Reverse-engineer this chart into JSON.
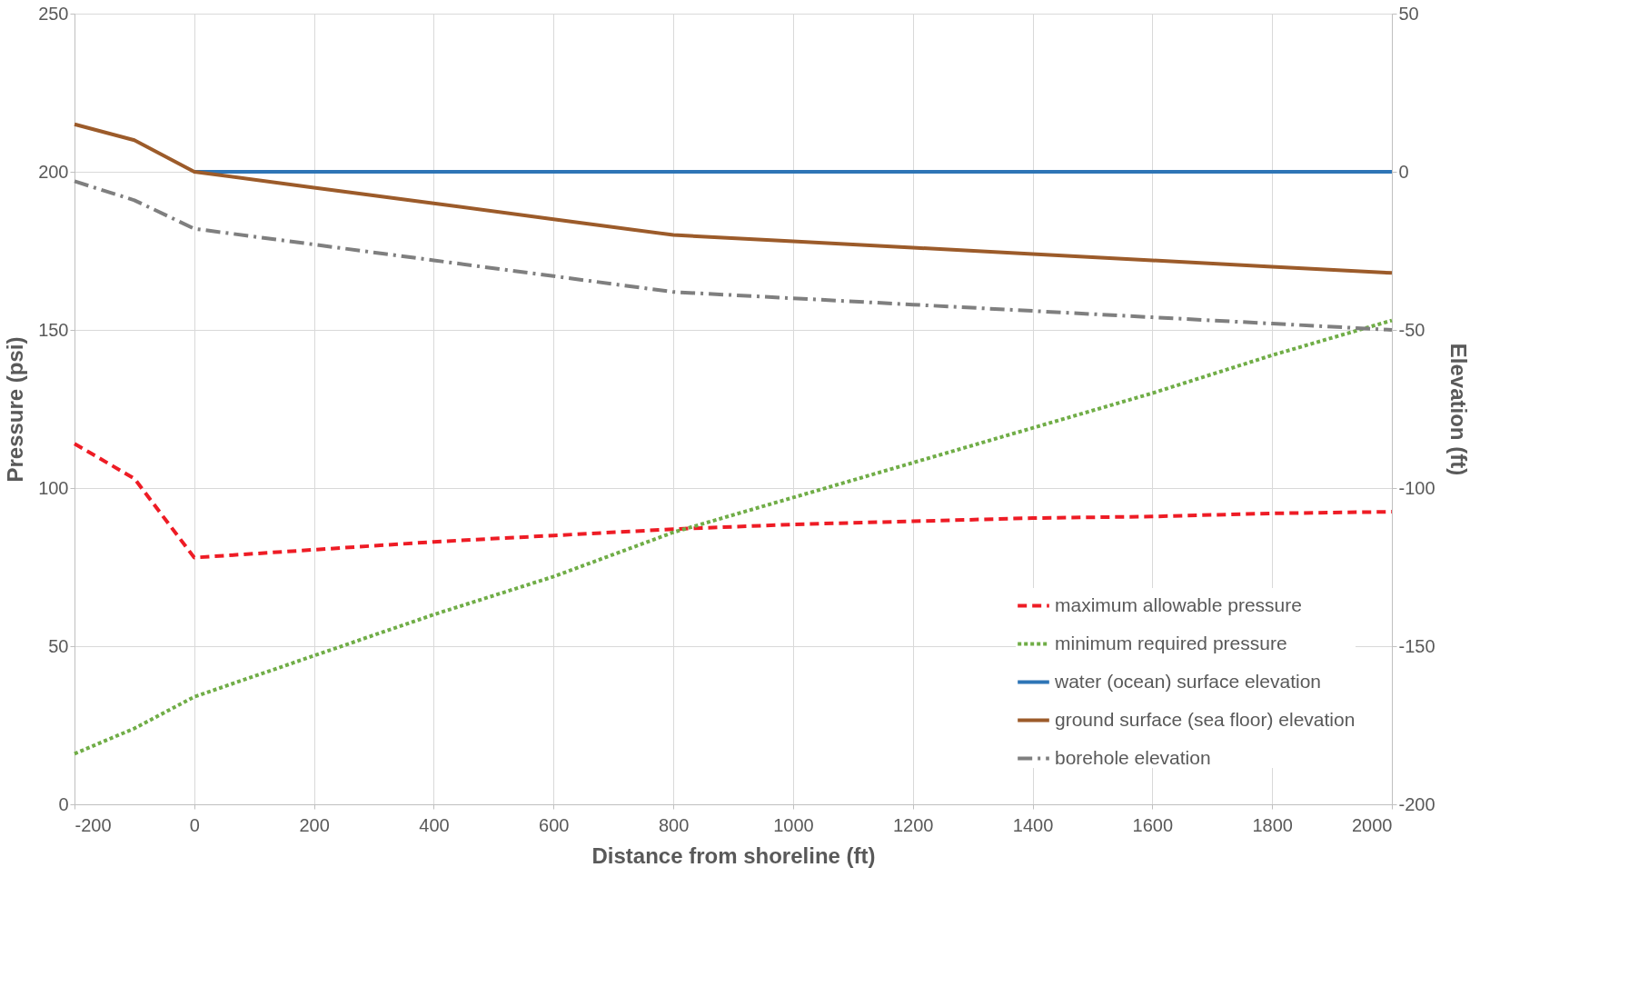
{
  "chart_data": {
    "type": "line",
    "xlabel": "Distance from shoreline (ft)",
    "ylabel": "Pressure (psi)",
    "y2label": "Elevation (ft)",
    "xlim": [
      -200,
      2000
    ],
    "xticks": [
      -200,
      0,
      200,
      400,
      600,
      800,
      1000,
      1200,
      1400,
      1600,
      1800,
      2000
    ],
    "ylim": [
      0,
      250
    ],
    "yticks": [
      0,
      50,
      100,
      150,
      200,
      250
    ],
    "y2lim": [
      -200,
      50
    ],
    "y2ticks": [
      -200,
      -150,
      -100,
      -50,
      0,
      50
    ],
    "grid": true,
    "legend": "bottom right",
    "marker": "none",
    "series": [
      {
        "name": "maximum allowable pressure",
        "color": "#ee1c25",
        "line_style": "dashed",
        "x": [
          -200,
          -100,
          0,
          200,
          400,
          600,
          800,
          1000,
          1200,
          1400,
          1600,
          1800,
          2000
        ],
        "values": [
          114,
          103,
          78,
          80.5,
          83,
          85,
          87,
          88.5,
          89.5,
          90.5,
          91,
          92,
          92.5
        ]
      },
      {
        "name": "minimum required pressure",
        "color": "#70ad47",
        "line_style": "dotted",
        "x": [
          -200,
          -100,
          0,
          200,
          400,
          600,
          800,
          1000,
          1200,
          1400,
          1600,
          1800,
          2000
        ],
        "values": [
          16,
          24,
          34,
          47,
          60,
          72,
          86,
          97,
          108,
          119,
          130,
          142,
          153
        ]
      },
      {
        "name": "water (ocean) surface elevation",
        "color": "#2e75b6",
        "line_style": "solid",
        "axis": "y2",
        "x": [
          0,
          2000
        ],
        "values": [
          0,
          0
        ]
      },
      {
        "name": "ground surface (sea floor) elevation",
        "color": "#9c5b2a",
        "line_style": "solid",
        "axis": "y2",
        "x": [
          -200,
          -100,
          0,
          200,
          400,
          600,
          800,
          1000,
          1200,
          1400,
          1600,
          1800,
          2000
        ],
        "values": [
          15,
          10,
          0,
          -5,
          -10,
          -15,
          -20,
          -22,
          -24,
          -26,
          -28,
          -30,
          -32
        ]
      },
      {
        "name": "borehole elevation",
        "color": "#7f7f7f",
        "line_style": "dashdot",
        "axis": "y2",
        "x": [
          -200,
          -100,
          0,
          200,
          400,
          600,
          800,
          1000,
          1200,
          1400,
          1600,
          1800,
          2000
        ],
        "values": [
          -3,
          -9,
          -18,
          -23,
          -28,
          -33,
          -38,
          -40,
          -42,
          -44,
          -46,
          -48,
          -50
        ]
      }
    ]
  }
}
